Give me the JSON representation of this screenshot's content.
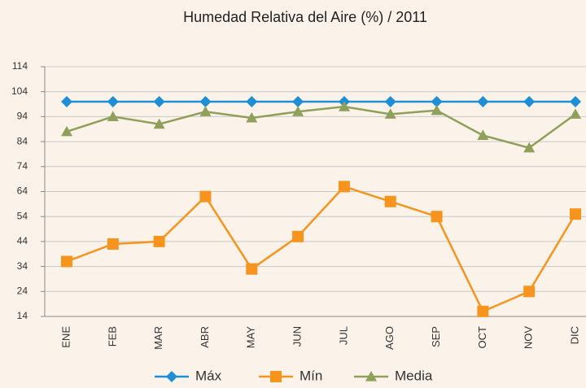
{
  "chart_data": {
    "type": "line",
    "title": "Humedad Relativa del Aire  (%) / 2011",
    "categories": [
      "ENE",
      "FEB",
      "MAR",
      "ABR",
      "MAY",
      "JUN",
      "JUL",
      "AGO",
      "SEP",
      "OCT",
      "NOV",
      "DIC"
    ],
    "series": [
      {
        "name": "Máx",
        "color": "#1e8fd6",
        "marker": "diamond",
        "values": [
          100,
          100,
          100,
          100,
          100,
          100,
          100,
          100,
          100,
          100,
          100,
          100
        ]
      },
      {
        "name": "Mín",
        "color": "#f7941d",
        "marker": "square",
        "values": [
          36,
          43,
          44,
          62,
          33,
          46,
          66,
          60,
          54,
          16,
          24,
          55
        ]
      },
      {
        "name": "Media",
        "color": "#8fa05a",
        "marker": "triangle",
        "values": [
          88,
          94,
          91,
          96,
          93.5,
          96,
          98,
          95,
          96.5,
          86.5,
          81.5,
          95
        ]
      }
    ],
    "ylim": [
      14,
      114
    ],
    "yticks": [
      14,
      24,
      34,
      44,
      54,
      64,
      74,
      84,
      94,
      104,
      114
    ],
    "grid": true,
    "legend": "bottom"
  }
}
